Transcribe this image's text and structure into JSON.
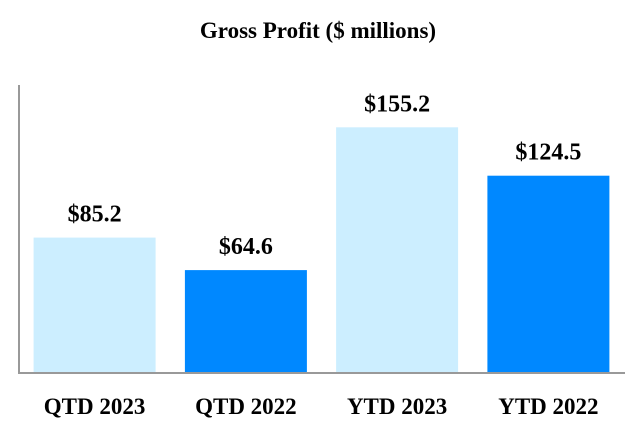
{
  "chart_data": {
    "type": "bar",
    "title": "Gross Profit ($ millions)",
    "categories": [
      "QTD 2023",
      "QTD 2022",
      "YTD 2023",
      "YTD 2022"
    ],
    "values": [
      85.2,
      64.6,
      155.2,
      124.5
    ],
    "data_labels": [
      "$85.2",
      "$64.6",
      "$155.2",
      "$124.5"
    ],
    "bar_colors": [
      "#cceeff",
      "#0088ff",
      "#cceeff",
      "#0088ff"
    ],
    "xlabel": "",
    "ylabel": "",
    "ylim": [
      0,
      182
    ],
    "grid": false,
    "legend": "none",
    "axis_color": "#999999"
  }
}
